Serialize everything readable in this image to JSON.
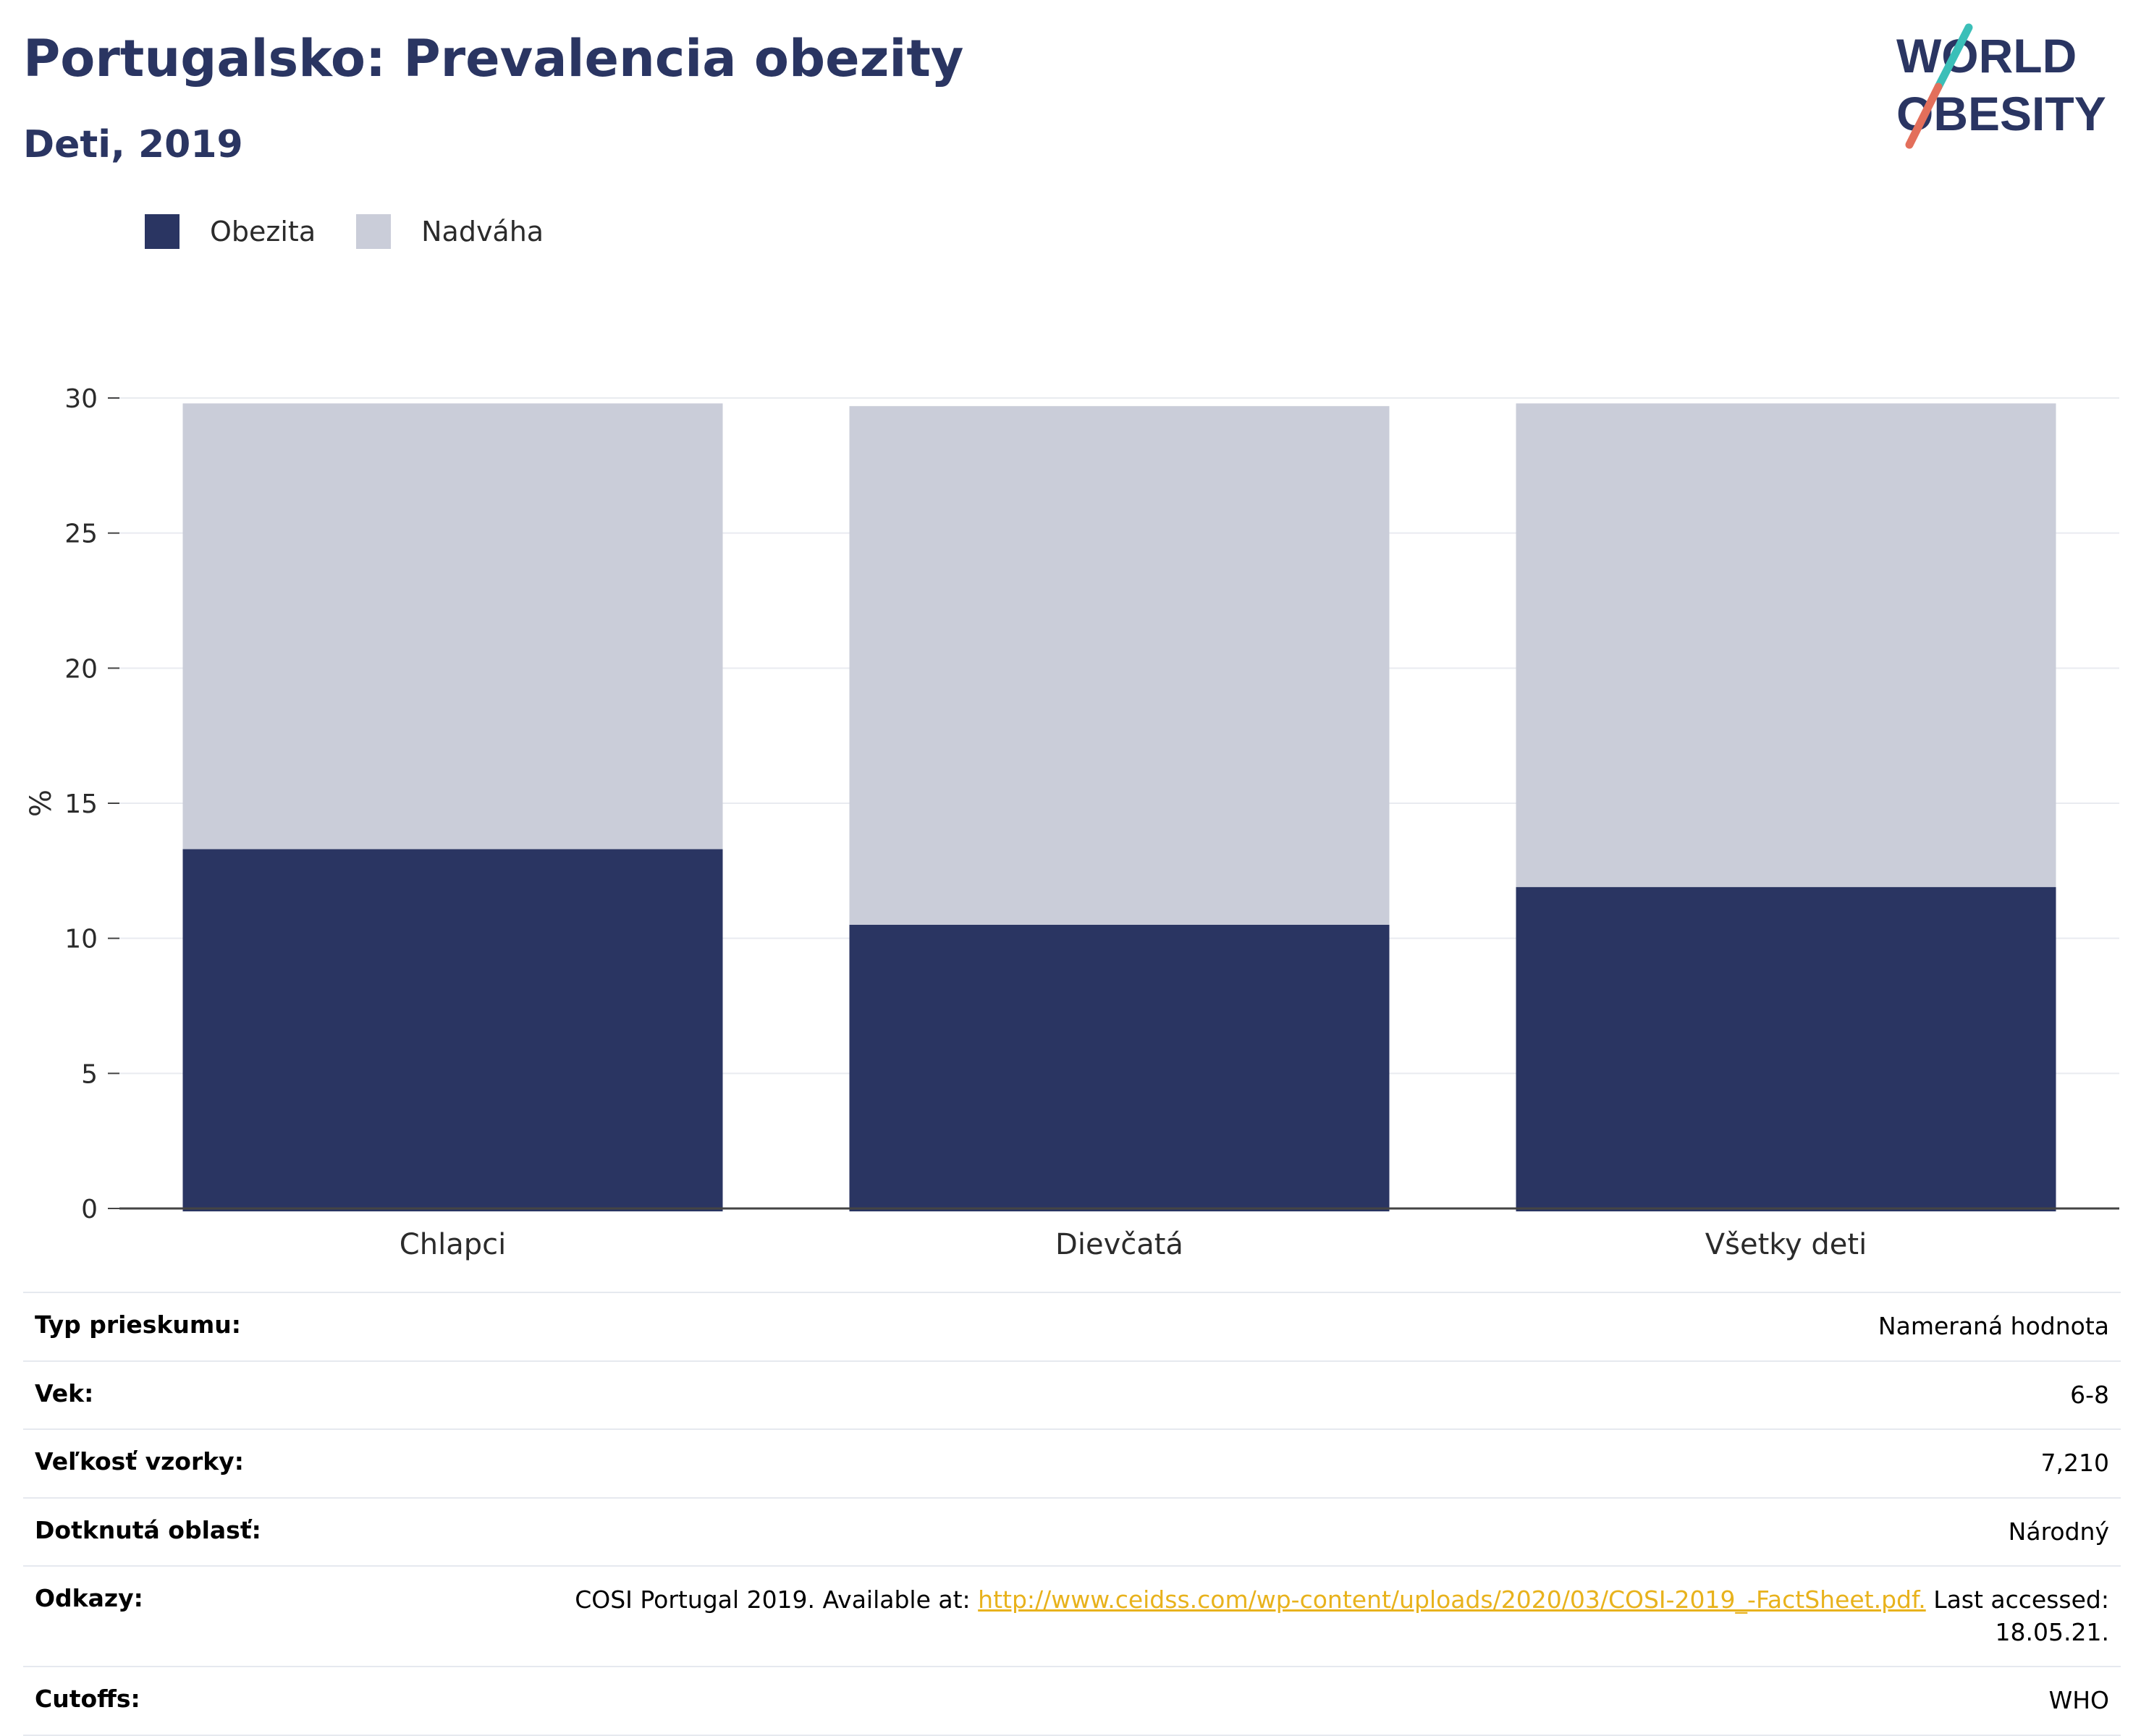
{
  "header": {
    "title": "Portugalsko: Prevalencia obezity",
    "subtitle": "Deti, 2019"
  },
  "logo": {
    "line1": "WORLD",
    "line2": "OBESITY"
  },
  "colors": {
    "obesity": "#2a3562",
    "overweight": "#cacdd9",
    "brand_navy": "#2a3562",
    "accent_teal": "#3bbfb8",
    "accent_coral": "#e36f5b",
    "link": "#e8b21c"
  },
  "chart_data": {
    "type": "bar",
    "stacked": true,
    "categories": [
      "Chlapci",
      "Dievčatá",
      "Všetky deti"
    ],
    "series": [
      {
        "name": "Obezita",
        "values": [
          13.3,
          10.5,
          11.9
        ]
      },
      {
        "name": "Nadváha",
        "values": [
          16.5,
          19.2,
          17.9
        ]
      }
    ],
    "ylabel": "%",
    "xlabel": "",
    "ylim": [
      0,
      30
    ],
    "yticks": [
      0,
      5,
      10,
      15,
      20,
      25,
      30
    ],
    "grid": true,
    "legend_position": "top-left"
  },
  "info": {
    "survey_type": {
      "label": "Typ prieskumu:",
      "value": "Nameraná hodnota"
    },
    "age": {
      "label": "Vek:",
      "value": "6-8"
    },
    "sample_size": {
      "label": "Veľkosť vzorky:",
      "value": "7,210"
    },
    "area": {
      "label": "Dotknutá oblasť:",
      "value": "Národný"
    },
    "references": {
      "label": "Odkazy:",
      "prefix": "COSI Portugal 2019. Available at: ",
      "link": "http://www.ceidss.com/wp-content/uploads/2020/03/COSI-2019_-FactSheet.pdf.",
      "suffix": " Last accessed:",
      "date": "18.05.21."
    },
    "cutoffs": {
      "label": "Cutoffs:",
      "value": "WHO"
    }
  }
}
